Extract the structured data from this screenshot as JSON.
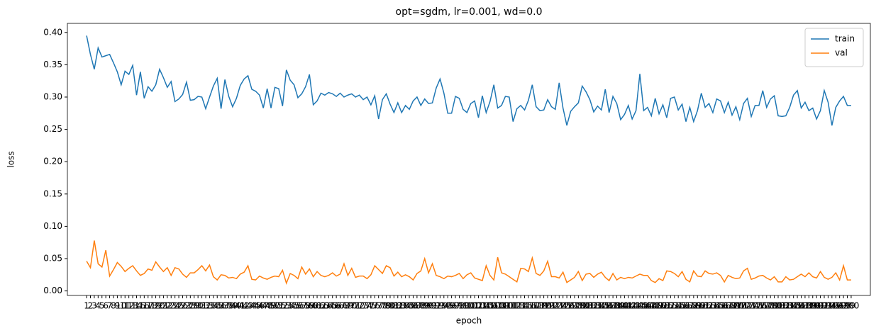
{
  "chart_data": {
    "type": "line",
    "title": "opt=sgdm, lr=0.001, wd=0.0",
    "xlabel": "epoch",
    "ylabel": "loss",
    "x": [
      1,
      2,
      3,
      4,
      5,
      6,
      7,
      8,
      9,
      10,
      11,
      12,
      13,
      14,
      15,
      16,
      17,
      18,
      19,
      20,
      21,
      22,
      23,
      24,
      25,
      26,
      27,
      28,
      29,
      30,
      31,
      32,
      33,
      34,
      35,
      36,
      37,
      38,
      39,
      40,
      41,
      42,
      43,
      44,
      45,
      46,
      47,
      48,
      49,
      50,
      51,
      52,
      53,
      54,
      55,
      56,
      57,
      58,
      59,
      60,
      61,
      62,
      63,
      64,
      65,
      66,
      67,
      68,
      69,
      70,
      71,
      72,
      73,
      74,
      75,
      76,
      77,
      78,
      79,
      80,
      81,
      82,
      83,
      84,
      85,
      86,
      87,
      88,
      89,
      90,
      91,
      92,
      93,
      94,
      95,
      96,
      97,
      98,
      99,
      100,
      101,
      102,
      103,
      104,
      105,
      106,
      107,
      108,
      109,
      110,
      111,
      112,
      113,
      114,
      115,
      116,
      117,
      118,
      119,
      120,
      121,
      122,
      123,
      124,
      125,
      126,
      127,
      128,
      129,
      130,
      131,
      132,
      133,
      134,
      135,
      136,
      137,
      138,
      139,
      140,
      141,
      142,
      143,
      144,
      145,
      146,
      147,
      148,
      149,
      150,
      151,
      152,
      153,
      154,
      155,
      156,
      157,
      158,
      159,
      160,
      161,
      162,
      163,
      164,
      165,
      166,
      167,
      168,
      169,
      170,
      171,
      172,
      173,
      174,
      175,
      176,
      177,
      178,
      179,
      180,
      181,
      182,
      183,
      184,
      185,
      186,
      187,
      188,
      189,
      190,
      191,
      192,
      193,
      194,
      195,
      196,
      197,
      198,
      199,
      200
    ],
    "xticks": [
      1,
      2,
      3,
      4,
      5,
      6,
      7,
      8,
      9,
      10,
      11,
      12,
      13,
      14,
      15,
      16,
      17,
      18,
      19,
      20,
      21,
      22,
      23,
      24,
      25,
      26,
      27,
      28,
      29,
      30,
      31,
      32,
      33,
      34,
      35,
      36,
      37,
      38,
      39,
      40,
      41,
      42,
      43,
      44,
      45,
      46,
      47,
      48,
      49,
      50,
      51,
      52,
      53,
      54,
      55,
      56,
      57,
      58,
      59,
      60,
      61,
      62,
      63,
      64,
      65,
      66,
      67,
      68,
      69,
      70,
      71,
      72,
      73,
      74,
      75,
      76,
      77,
      78,
      79,
      80,
      81,
      82,
      83,
      84,
      85,
      86,
      87,
      88,
      89,
      90,
      91,
      92,
      93,
      94,
      95,
      96,
      97,
      98,
      99,
      100,
      101,
      102,
      103,
      104,
      105,
      106,
      107,
      108,
      109,
      110,
      111,
      112,
      113,
      114,
      115,
      116,
      117,
      118,
      119,
      120,
      121,
      122,
      123,
      124,
      125,
      126,
      127,
      128,
      129,
      130,
      131,
      132,
      133,
      134,
      135,
      136,
      137,
      138,
      139,
      140,
      141,
      142,
      143,
      144,
      145,
      146,
      147,
      148,
      149,
      150,
      151,
      152,
      153,
      154,
      155,
      156,
      157,
      158,
      159,
      160,
      161,
      162,
      163,
      164,
      165,
      166,
      167,
      168,
      169,
      170,
      171,
      172,
      173,
      174,
      175,
      176,
      177,
      178,
      179,
      180,
      181,
      182,
      183,
      184,
      185,
      186,
      187,
      188,
      189,
      190,
      191,
      192,
      193,
      194,
      195,
      196,
      197,
      198,
      199,
      200
    ],
    "xlim": [
      -4,
      205
    ],
    "ylim": [
      -0.007,
      0.414
    ],
    "yticks": [
      {
        "value": 0,
        "label": "0.00"
      },
      {
        "value": 0.05,
        "label": "0.05"
      },
      {
        "value": 0.1,
        "label": "0.10"
      },
      {
        "value": 0.15,
        "label": "0.15"
      },
      {
        "value": 0.2,
        "label": "0.20"
      },
      {
        "value": 0.25,
        "label": "0.25"
      },
      {
        "value": 0.3,
        "label": "0.30"
      },
      {
        "value": 0.35,
        "label": "0.35"
      },
      {
        "value": 0.4,
        "label": "0.40"
      }
    ],
    "legend": "upper right",
    "series": [
      {
        "name": "train",
        "color": "#1f77b4",
        "values": [
          0.395,
          0.366,
          0.343,
          0.376,
          0.362,
          0.364,
          0.366,
          0.353,
          0.339,
          0.319,
          0.34,
          0.335,
          0.349,
          0.303,
          0.339,
          0.298,
          0.316,
          0.309,
          0.319,
          0.343,
          0.33,
          0.315,
          0.324,
          0.293,
          0.297,
          0.304,
          0.323,
          0.295,
          0.296,
          0.301,
          0.3,
          0.282,
          0.3,
          0.317,
          0.329,
          0.282,
          0.327,
          0.301,
          0.285,
          0.298,
          0.318,
          0.328,
          0.333,
          0.312,
          0.309,
          0.303,
          0.283,
          0.313,
          0.283,
          0.315,
          0.313,
          0.286,
          0.342,
          0.326,
          0.319,
          0.299,
          0.305,
          0.316,
          0.335,
          0.288,
          0.294,
          0.306,
          0.303,
          0.307,
          0.305,
          0.301,
          0.306,
          0.3,
          0.303,
          0.305,
          0.3,
          0.303,
          0.296,
          0.3,
          0.288,
          0.302,
          0.266,
          0.296,
          0.305,
          0.289,
          0.276,
          0.291,
          0.276,
          0.287,
          0.281,
          0.294,
          0.3,
          0.287,
          0.297,
          0.29,
          0.291,
          0.314,
          0.328,
          0.306,
          0.275,
          0.275,
          0.301,
          0.298,
          0.281,
          0.276,
          0.29,
          0.294,
          0.268,
          0.302,
          0.276,
          0.293,
          0.319,
          0.283,
          0.287,
          0.301,
          0.3,
          0.262,
          0.282,
          0.287,
          0.28,
          0.295,
          0.319,
          0.285,
          0.279,
          0.28,
          0.296,
          0.285,
          0.281,
          0.322,
          0.283,
          0.256,
          0.278,
          0.285,
          0.291,
          0.317,
          0.308,
          0.296,
          0.277,
          0.286,
          0.28,
          0.312,
          0.276,
          0.301,
          0.29,
          0.265,
          0.273,
          0.287,
          0.266,
          0.279,
          0.336,
          0.279,
          0.284,
          0.271,
          0.298,
          0.274,
          0.288,
          0.268,
          0.298,
          0.3,
          0.28,
          0.289,
          0.262,
          0.284,
          0.262,
          0.279,
          0.306,
          0.284,
          0.29,
          0.276,
          0.297,
          0.294,
          0.276,
          0.292,
          0.272,
          0.285,
          0.265,
          0.29,
          0.298,
          0.27,
          0.287,
          0.287,
          0.31,
          0.284,
          0.297,
          0.302,
          0.271,
          0.27,
          0.271,
          0.284,
          0.303,
          0.31,
          0.283,
          0.292,
          0.279,
          0.283,
          0.266,
          0.279,
          0.31,
          0.292,
          0.256,
          0.284,
          0.294,
          0.301,
          0.287,
          0.287
        ]
      },
      {
        "name": "val",
        "color": "#ff7f0e",
        "values": [
          0.046,
          0.036,
          0.078,
          0.042,
          0.037,
          0.063,
          0.023,
          0.033,
          0.044,
          0.038,
          0.03,
          0.035,
          0.039,
          0.031,
          0.024,
          0.027,
          0.034,
          0.032,
          0.045,
          0.037,
          0.03,
          0.036,
          0.024,
          0.036,
          0.034,
          0.026,
          0.021,
          0.028,
          0.028,
          0.033,
          0.039,
          0.031,
          0.04,
          0.022,
          0.017,
          0.025,
          0.024,
          0.02,
          0.021,
          0.019,
          0.026,
          0.029,
          0.039,
          0.018,
          0.017,
          0.023,
          0.02,
          0.018,
          0.021,
          0.023,
          0.022,
          0.032,
          0.012,
          0.027,
          0.024,
          0.019,
          0.037,
          0.026,
          0.034,
          0.022,
          0.03,
          0.024,
          0.022,
          0.024,
          0.028,
          0.023,
          0.026,
          0.042,
          0.024,
          0.035,
          0.021,
          0.023,
          0.023,
          0.019,
          0.025,
          0.039,
          0.033,
          0.027,
          0.039,
          0.036,
          0.023,
          0.029,
          0.022,
          0.025,
          0.022,
          0.017,
          0.027,
          0.031,
          0.05,
          0.028,
          0.042,
          0.024,
          0.022,
          0.019,
          0.023,
          0.022,
          0.024,
          0.027,
          0.019,
          0.025,
          0.028,
          0.02,
          0.018,
          0.016,
          0.039,
          0.024,
          0.017,
          0.052,
          0.028,
          0.026,
          0.022,
          0.018,
          0.014,
          0.035,
          0.034,
          0.03,
          0.051,
          0.027,
          0.024,
          0.031,
          0.046,
          0.022,
          0.022,
          0.02,
          0.029,
          0.013,
          0.017,
          0.021,
          0.03,
          0.016,
          0.026,
          0.027,
          0.021,
          0.026,
          0.029,
          0.021,
          0.016,
          0.027,
          0.017,
          0.021,
          0.019,
          0.021,
          0.02,
          0.023,
          0.026,
          0.024,
          0.024,
          0.016,
          0.013,
          0.019,
          0.016,
          0.031,
          0.03,
          0.027,
          0.022,
          0.03,
          0.018,
          0.014,
          0.031,
          0.023,
          0.022,
          0.031,
          0.027,
          0.026,
          0.028,
          0.024,
          0.014,
          0.024,
          0.021,
          0.019,
          0.02,
          0.031,
          0.035,
          0.018,
          0.02,
          0.023,
          0.024,
          0.02,
          0.017,
          0.022,
          0.014,
          0.014,
          0.022,
          0.017,
          0.018,
          0.022,
          0.026,
          0.022,
          0.028,
          0.022,
          0.02,
          0.03,
          0.021,
          0.018,
          0.021,
          0.028,
          0.017,
          0.039,
          0.017,
          0.017
        ]
      }
    ]
  }
}
